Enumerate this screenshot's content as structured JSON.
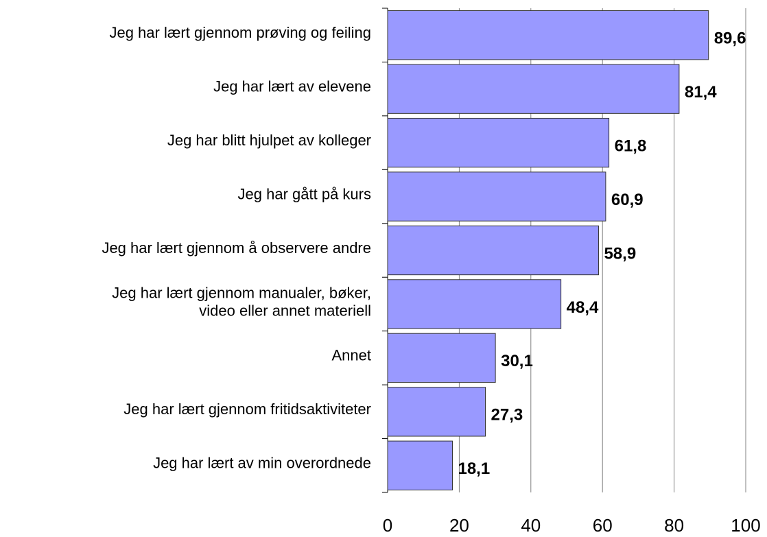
{
  "chart_data": {
    "type": "bar",
    "orientation": "horizontal",
    "categories": [
      "Jeg har lært gjennom prøving og feiling",
      "Jeg har lært av elevene",
      "Jeg har blitt hjulpet av kolleger",
      "Jeg har gått på kurs",
      "Jeg har lært gjennom å observere andre",
      "Jeg har lært gjennom manualer, bøker,\nvideo eller annet materiell",
      "Annet",
      "Jeg har lært gjennom fritidsaktiviteter",
      "Jeg har lært av min overordnede"
    ],
    "values": [
      89.6,
      81.4,
      61.8,
      60.9,
      58.9,
      48.4,
      30.1,
      27.3,
      18.1
    ],
    "value_labels": [
      "89,6",
      "81,4",
      "61,8",
      "60,9",
      "58,9",
      "48,4",
      "30,1",
      "27,3",
      "18,1"
    ],
    "color": "#9999ff",
    "xlim": [
      0,
      100
    ],
    "xticks": [
      0,
      20,
      40,
      60,
      80,
      100
    ],
    "grid": true
  }
}
